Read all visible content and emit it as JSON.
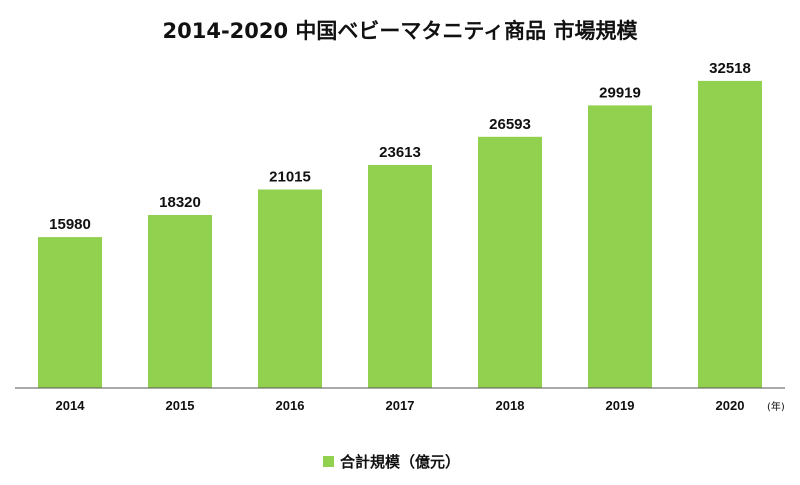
{
  "chart_data": {
    "type": "bar",
    "title": "2014-2020 中国ベビーマタニティ商品 市場規模",
    "categories": [
      "2014",
      "2015",
      "2016",
      "2017",
      "2018",
      "2019",
      "2020"
    ],
    "series": [
      {
        "name": "合計規模（億元）",
        "values": [
          15980,
          18320,
          21015,
          23613,
          26593,
          29919,
          32518
        ],
        "color": "#92d050"
      }
    ],
    "xlabel": "(年)",
    "ylabel": "",
    "ylim": [
      0,
      36000
    ],
    "grid": false,
    "legend": "bottom-center",
    "axis_color": "#555555",
    "text_color": "#111111"
  }
}
